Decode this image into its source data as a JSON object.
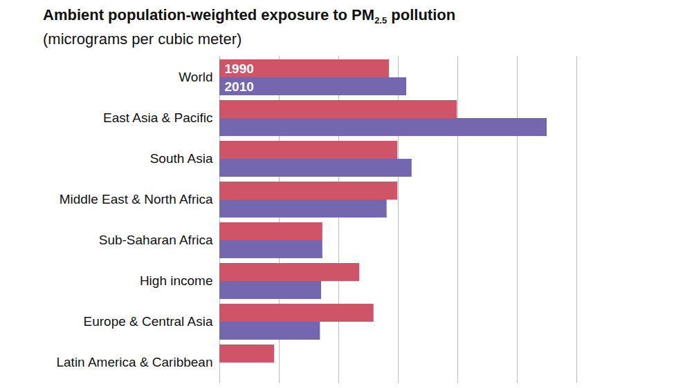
{
  "chart_data": {
    "type": "bar",
    "title": "Ambient population-weighted exposure to PM2.5 pollution",
    "subtitle": "(micrograms per cubic meter)",
    "orientation": "horizontal",
    "categories": [
      "World",
      "East Asia & Pacific",
      "South Asia",
      "Middle East & North Africa",
      "Sub-Saharan Africa",
      "High income",
      "Europe & Central Asia",
      "Latin America & Caribbean"
    ],
    "series": [
      {
        "name": "1990",
        "color": "#cf5468",
        "values": [
          28.5,
          39.9,
          29.9,
          29.9,
          17.3,
          23.5,
          25.9,
          9.2
        ]
      },
      {
        "name": "2010",
        "color": "#7467b0",
        "values": [
          31.4,
          55.0,
          32.3,
          28.1,
          17.3,
          17.1,
          16.9,
          null
        ]
      }
    ],
    "xlim": [
      0,
      60
    ],
    "xticks": [
      0,
      10,
      20,
      30,
      40,
      50,
      60
    ],
    "grid": true,
    "tick_labels": "y",
    "legend": "inside"
  }
}
